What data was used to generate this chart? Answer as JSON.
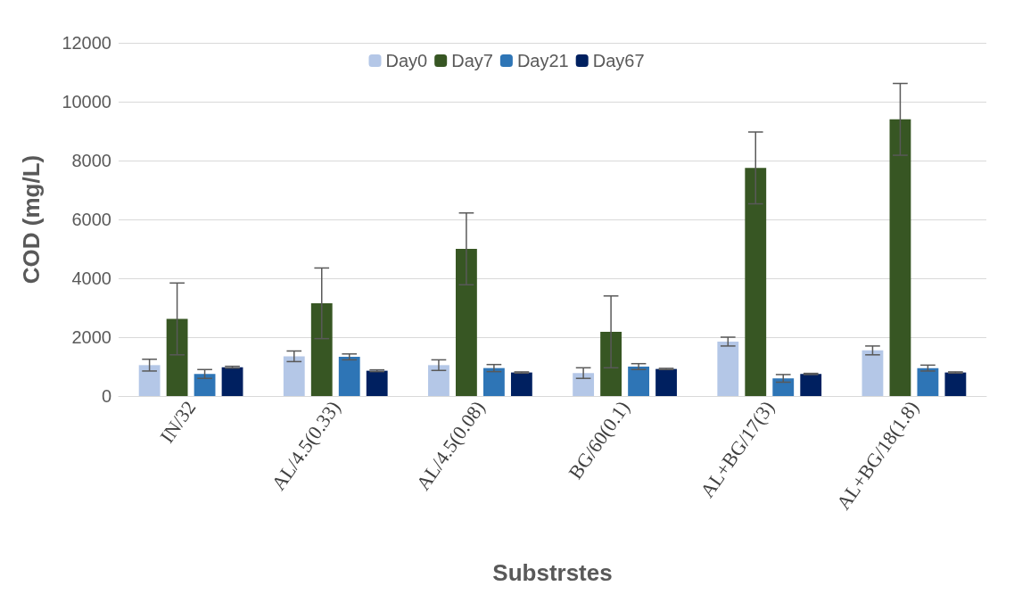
{
  "chart_data": {
    "type": "bar",
    "xlabel": "Substrstes",
    "ylabel": "COD (mg/L)",
    "categories": [
      "IN/32",
      "AL/4.5(0.33)",
      "AL/4.5(0.08)",
      "BG/60(0.1)",
      "AL+BG/17(3)",
      "AL+BG/18(1.8)"
    ],
    "series": [
      {
        "name": "Day0",
        "color": "#b4c7e7",
        "values": [
          1050,
          1350,
          1050,
          780,
          1850,
          1550
        ],
        "errors": [
          200,
          180,
          180,
          180,
          150,
          150
        ]
      },
      {
        "name": "Day7",
        "color": "#375623",
        "values": [
          2620,
          3150,
          5000,
          2180,
          7750,
          9400
        ],
        "errors": [
          1220,
          1200,
          1220,
          1220,
          1220,
          1220
        ]
      },
      {
        "name": "Day21",
        "color": "#2e75b6",
        "values": [
          750,
          1330,
          950,
          1000,
          600,
          950
        ],
        "errors": [
          150,
          100,
          120,
          100,
          130,
          100
        ]
      },
      {
        "name": "Day67",
        "color": "#002060",
        "values": [
          980,
          860,
          800,
          920,
          750,
          800
        ],
        "errors": [
          30,
          30,
          20,
          20,
          20,
          20
        ]
      }
    ],
    "ylim": [
      0,
      12000
    ],
    "yticks": [
      0,
      2000,
      4000,
      6000,
      8000,
      10000,
      12000
    ],
    "grid": "y",
    "legend": "top"
  }
}
